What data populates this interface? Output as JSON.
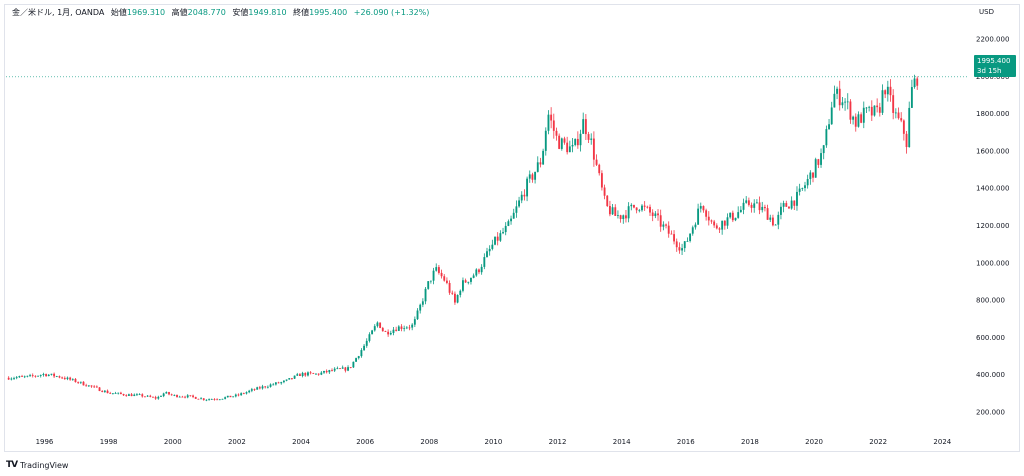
{
  "legend": {
    "symbol": "金／米ドル, 1月, OANDA",
    "open_label": "始値",
    "open": "1969.310",
    "high_label": "高値",
    "high": "2048.770",
    "low_label": "安値",
    "low": "1949.810",
    "close_label": "終値",
    "close": "1995.400",
    "change": "+26.090 (+1.32%)"
  },
  "currency": "USD",
  "price_tag": {
    "price": "1995.400",
    "countdown": "3d 15h"
  },
  "footer": {
    "brand": "TradingView",
    "logo": "TV"
  },
  "colors": {
    "up": "#089981",
    "down": "#f23645",
    "grid": "#f0f3fa"
  },
  "chart_data": {
    "type": "candlestick",
    "title": "",
    "xlabel": "",
    "ylabel": "",
    "ylim": [
      100,
      2300
    ],
    "x_range": [
      1994.8,
      2024.8
    ],
    "y_ticks": [
      200,
      400,
      600,
      800,
      1000,
      1200,
      1400,
      1600,
      1800,
      2000,
      2200
    ],
    "y_tick_labels": [
      "200.000",
      "400.000",
      "600.000",
      "800.000",
      "1000.000",
      "1200.000",
      "1400.000",
      "1600.000",
      "1800.000",
      "2000.000",
      "2200.000"
    ],
    "x_ticks": [
      1996,
      1998,
      2000,
      2002,
      2004,
      2006,
      2008,
      2010,
      2012,
      2014,
      2016,
      2018,
      2020,
      2022,
      2024
    ],
    "x_tick_labels": [
      "1996",
      "1998",
      "2000",
      "2002",
      "2004",
      "2006",
      "2008",
      "2010",
      "2012",
      "2014",
      "2016",
      "2018",
      "2020",
      "2022",
      "2024"
    ],
    "grid": false,
    "anchors_year": [
      1994.8,
      1995.5,
      1996.0,
      1996.5,
      1997.0,
      1997.5,
      1998.0,
      1998.5,
      1999.0,
      1999.5,
      1999.75,
      2000.0,
      2000.5,
      2001.0,
      2001.5,
      2002.0,
      2002.5,
      2003.0,
      2003.5,
      2004.0,
      2004.5,
      2005.0,
      2005.5,
      2006.0,
      2006.4,
      2006.6,
      2007.0,
      2007.5,
      2008.0,
      2008.2,
      2008.5,
      2008.8,
      2009.0,
      2009.5,
      2010.0,
      2010.5,
      2011.0,
      2011.5,
      2011.7,
      2012.0,
      2012.5,
      2012.8,
      2013.0,
      2013.3,
      2013.5,
      2013.8,
      2014.0,
      2014.5,
      2015.0,
      2015.5,
      2015.9,
      2016.0,
      2016.5,
      2016.9,
      2017.0,
      2017.5,
      2018.0,
      2018.5,
      2018.8,
      2019.0,
      2019.5,
      2020.0,
      2020.3,
      2020.6,
      2020.9,
      2021.0,
      2021.3,
      2021.6,
      2022.0,
      2022.2,
      2022.5,
      2022.8,
      2022.9,
      2023.0,
      2023.2
    ],
    "anchors_price": [
      380,
      385,
      400,
      385,
      360,
      330,
      300,
      290,
      285,
      270,
      300,
      285,
      280,
      265,
      270,
      285,
      315,
      340,
      360,
      400,
      400,
      420,
      430,
      560,
      680,
      620,
      650,
      660,
      900,
      960,
      900,
      780,
      880,
      950,
      1100,
      1200,
      1400,
      1550,
      1800,
      1650,
      1600,
      1750,
      1680,
      1450,
      1300,
      1250,
      1250,
      1310,
      1250,
      1150,
      1070,
      1100,
      1320,
      1180,
      1200,
      1250,
      1320,
      1270,
      1200,
      1290,
      1350,
      1500,
      1600,
      1900,
      1880,
      1850,
      1750,
      1800,
      1800,
      1950,
      1800,
      1700,
      1630,
      1900,
      1995
    ]
  }
}
